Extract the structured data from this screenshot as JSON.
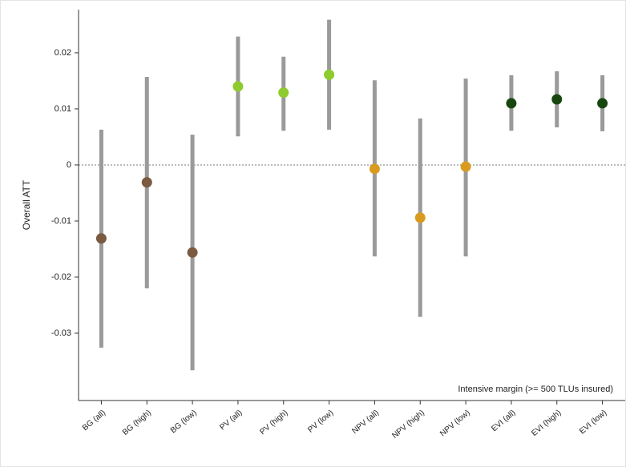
{
  "chart_data": {
    "type": "errorpoint",
    "y_label": "Overall ATT",
    "annotation": "Intensive margin (>= 500 TLUs insured)",
    "categories": [
      "BG (all)",
      "BG (high)",
      "BG (low)",
      "PV (all)",
      "PV (high)",
      "PV (low)",
      "NPV (all)",
      "NPV (high)",
      "NPV (low)",
      "EVI (all)",
      "EVI (high)",
      "EVI (low)"
    ],
    "values": [
      -0.0131,
      -0.0031,
      -0.0156,
      0.014,
      0.0129,
      0.0161,
      -0.0007,
      -0.0094,
      -0.0003,
      0.011,
      0.0117,
      0.011
    ],
    "lower": [
      -0.0326,
      -0.022,
      -0.0366,
      0.0051,
      0.0061,
      0.0063,
      -0.0163,
      -0.0271,
      -0.0163,
      0.0061,
      0.0067,
      0.006
    ],
    "upper": [
      0.0063,
      0.0157,
      0.0054,
      0.0229,
      0.0193,
      0.0259,
      0.0151,
      0.0083,
      0.0154,
      0.016,
      0.0167,
      0.016
    ],
    "colors": [
      "#7a5a40",
      "#7a5a40",
      "#7a5a40",
      "#8dcb2e",
      "#8dcb2e",
      "#8dcb2e",
      "#d99b1f",
      "#d99b1f",
      "#d99b1f",
      "#17470f",
      "#17470f",
      "#17470f"
    ],
    "error_color": "#9a9a9a",
    "reference_line": 0,
    "ylim": [
      -0.042,
      0.0277
    ],
    "yticks": [
      -0.03,
      -0.02,
      -0.01,
      0,
      0.01,
      0.02
    ]
  }
}
